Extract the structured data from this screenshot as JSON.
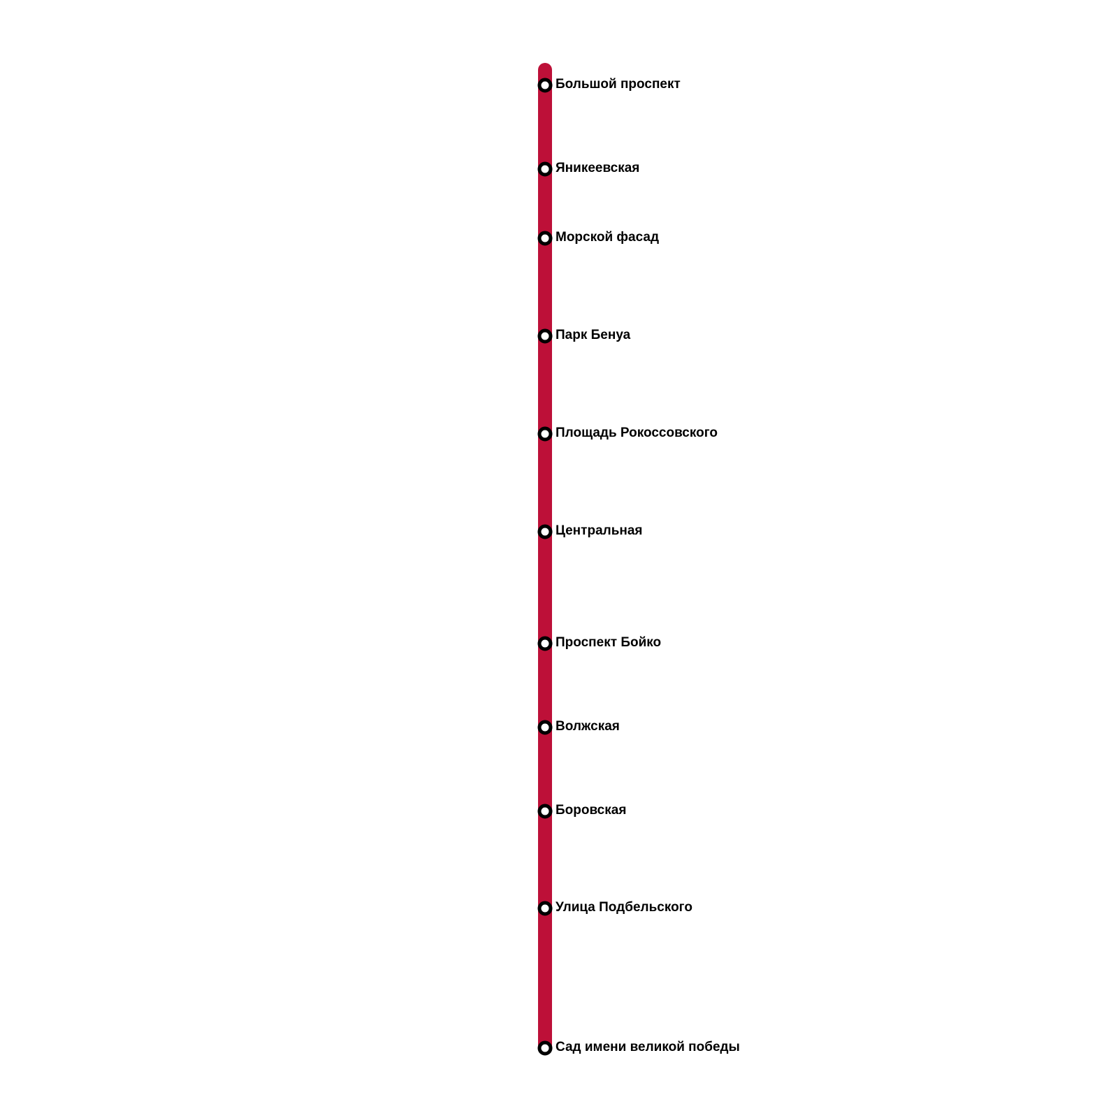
{
  "line": {
    "color": "#BD1038"
  },
  "stations": [
    "Большой проспект",
    "Яникеевская",
    "Морской фасад",
    "Парк Бенуа",
    "Площадь Рокоссовского",
    "Центральная",
    "Проспект Бойко",
    "Волжская",
    "Боровская",
    "Улица Подбельского",
    "Сад имени великой победы"
  ]
}
